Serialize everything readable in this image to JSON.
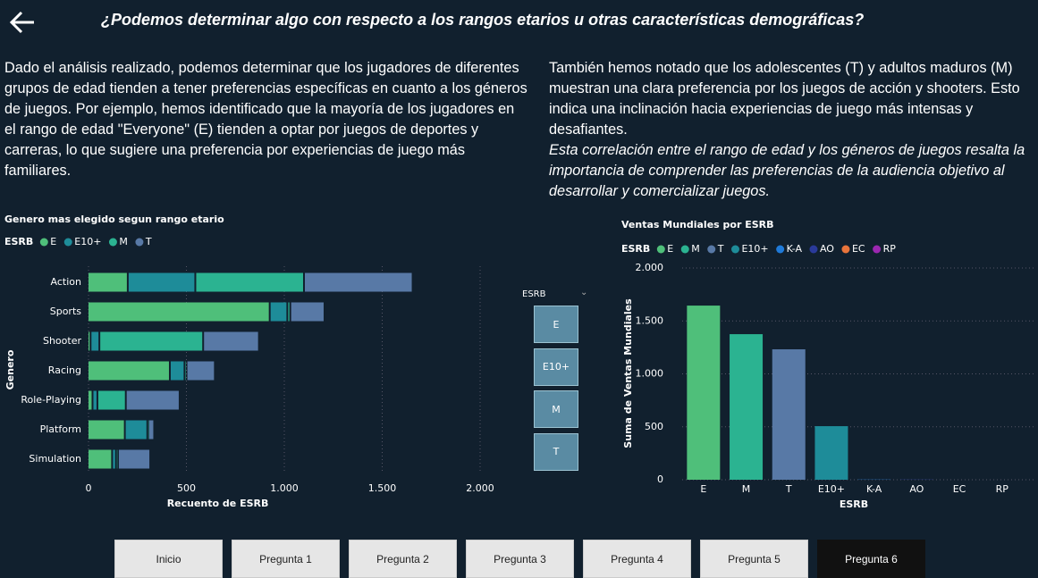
{
  "header": {
    "title": "¿Podemos determinar algo con respecto a los rangos etarios u otras características demográficas?"
  },
  "text": {
    "left": "Dado el análisis realizado, podemos determinar que los jugadores de diferentes grupos de edad tienden a tener preferencias específicas en cuanto a los géneros de juegos. Por ejemplo, hemos identificado que la mayoría de los jugadores en el rango de edad \"Everyone\" (E) tienden a optar por juegos de deportes y carreras, lo que sugiere una preferencia por experiencias de juego más familiares.",
    "right": "También hemos notado que los adolescentes (T) y adultos maduros (M) muestran una clara preferencia por los juegos de acción y shooters. Esto indica una inclinación hacia experiencias de juego más intensas y desafiantes.",
    "right_italic": "Esta correlación entre el rango de edad y los géneros de juegos resalta la importancia de comprender las preferencias de la audiencia objetivo al desarrollar y comercializar juegos."
  },
  "chart_data": [
    {
      "type": "bar",
      "orientation": "horizontal",
      "stacked": true,
      "title": "Genero mas elegido segun rango etario",
      "legend_title": "ESRB",
      "categories": [
        "Action",
        "Sports",
        "Shooter",
        "Racing",
        "Role-Playing",
        "Platform",
        "Simulation"
      ],
      "series": [
        {
          "name": "E",
          "color": "#4fbf7a",
          "values": [
            205,
            930,
            15,
            420,
            25,
            190,
            125
          ]
        },
        {
          "name": "E10+",
          "color": "#1e8c99",
          "values": [
            345,
            90,
            45,
            75,
            25,
            115,
            20
          ]
        },
        {
          "name": "M",
          "color": "#2bb391",
          "values": [
            555,
            15,
            530,
            10,
            145,
            5,
            10
          ]
        },
        {
          "name": "T",
          "color": "#5879a6",
          "values": [
            555,
            175,
            285,
            145,
            275,
            30,
            165
          ]
        }
      ],
      "xlim": [
        0,
        2000
      ],
      "xticks": [
        0,
        500,
        {
          "value": 1000,
          "label": "1.000"
        },
        {
          "value": 1500,
          "label": "1.500"
        },
        {
          "value": 2000,
          "label": "2.000"
        }
      ],
      "x_label": "Recuento de ESRB",
      "y_label": "Genero",
      "grid": true
    },
    {
      "type": "bar",
      "orientation": "vertical",
      "title": "Ventas Mundiales por ESRB",
      "legend_title": "ESRB",
      "categories": [
        "E",
        "M",
        "T",
        "E10+",
        "K-A",
        "AO",
        "EC",
        "RP"
      ],
      "values": [
        1645,
        1375,
        1232,
        506,
        2,
        2,
        0,
        0
      ],
      "colors": [
        "#4fbf7a",
        "#2bb391",
        "#5879a6",
        "#1e8c99",
        "#1f7ad8",
        "#2a3a9a",
        "#e8743b",
        "#9b27b0"
      ],
      "ylim": [
        0,
        2000
      ],
      "yticks": [
        0,
        500,
        {
          "value": 1000,
          "label": "1.000"
        },
        {
          "value": 1500,
          "label": "1.500"
        },
        {
          "value": 2000,
          "label": "2.000"
        }
      ],
      "x_label": "ESRB",
      "y_label": "Suma de Ventas Mundiales",
      "grid": true
    }
  ],
  "slicer": {
    "title": "ESRB",
    "options": [
      "E",
      "E10+",
      "M",
      "T"
    ]
  },
  "nav": {
    "buttons": [
      "Inicio",
      "Pregunta 1",
      "Pregunta 2",
      "Pregunta 3",
      "Pregunta 4",
      "Pregunta 5",
      "Pregunta 6"
    ]
  }
}
